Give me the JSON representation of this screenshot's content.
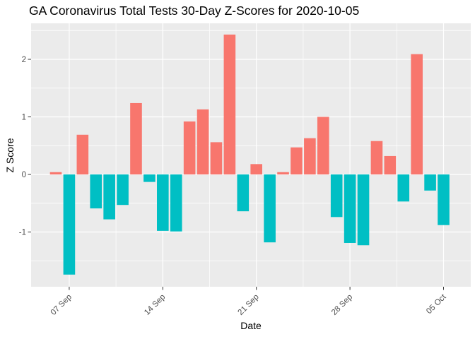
{
  "chart_data": {
    "type": "bar",
    "title": "GA Coronavirus Total Tests 30-Day Z-Scores for 2020-10-05",
    "xlabel": "Date",
    "ylabel": "Z Score",
    "legend": "none",
    "grid": "white major and minor gridlines on grey panel",
    "panel_bg": "#EBEBEB",
    "ylim": [
      -1.95,
      2.63
    ],
    "y_ticks": [
      -1,
      0,
      1,
      2
    ],
    "y_tick_labels": [
      "-1",
      "0",
      "1",
      "2"
    ],
    "y_minor_ticks": [
      -1.5,
      -0.5,
      0.5,
      1.5,
      2.5
    ],
    "x_tick_labels": [
      "07 Sep",
      "14 Sep",
      "21 Sep",
      "28 Sep",
      "05 Oct"
    ],
    "x_tick_day_indices": [
      1,
      8,
      15,
      22,
      29
    ],
    "x_minor_day_indices": [
      4.5,
      11.5,
      18.5,
      25.5
    ],
    "dates": [
      "2020-09-06",
      "2020-09-07",
      "2020-09-08",
      "2020-09-09",
      "2020-09-10",
      "2020-09-11",
      "2020-09-12",
      "2020-09-13",
      "2020-09-14",
      "2020-09-15",
      "2020-09-16",
      "2020-09-17",
      "2020-09-18",
      "2020-09-19",
      "2020-09-20",
      "2020-09-21",
      "2020-09-22",
      "2020-09-23",
      "2020-09-24",
      "2020-09-25",
      "2020-09-26",
      "2020-09-27",
      "2020-09-28",
      "2020-09-29",
      "2020-09-30",
      "2020-10-01",
      "2020-10-02",
      "2020-10-03",
      "2020-10-04",
      "2020-10-05"
    ],
    "values": [
      0.04,
      -1.74,
      0.69,
      -0.59,
      -0.78,
      -0.53,
      1.24,
      -0.13,
      -0.98,
      -0.99,
      0.92,
      1.13,
      0.56,
      2.43,
      -0.64,
      0.18,
      -1.18,
      0.04,
      0.47,
      0.63,
      1.0,
      -0.74,
      -1.19,
      -1.23,
      0.58,
      0.32,
      -0.47,
      2.09,
      -0.28,
      -0.88
    ],
    "colors": {
      "positive": "#F8766D",
      "negative": "#00BFC4",
      "gridline": "#FFFFFF",
      "tick_label_text": "#4D4D4D",
      "tick_mark": "#333333",
      "title_text": "#000000"
    }
  }
}
